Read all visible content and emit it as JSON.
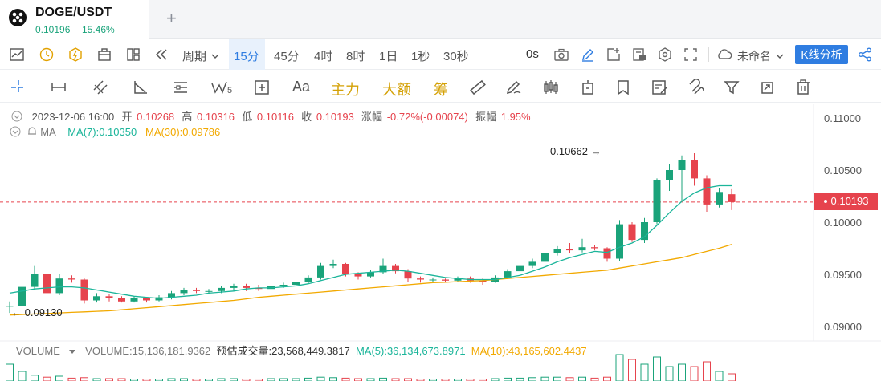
{
  "tab": {
    "symbol": "DOGE/USDT",
    "price": "0.10196",
    "change": "15.46%",
    "add": "+"
  },
  "toolbar": {
    "period_label": "周期",
    "timeframes": [
      "15分",
      "45分",
      "4时",
      "8时",
      "1日",
      "1秒",
      "30秒"
    ],
    "active_timeframe": "15分",
    "countdown": "0s",
    "layout_name": "未命名",
    "analysis_button": "K线分析"
  },
  "drawbar": {
    "font_tool": "Aa",
    "text_tools": [
      "主力",
      "大额",
      "筹"
    ],
    "wave_sub": "5"
  },
  "legend": {
    "datetime": "2023-12-06 16:00",
    "open_label": "开",
    "open": "0.10268",
    "high_label": "高",
    "high": "0.10316",
    "low_label": "低",
    "low": "0.10116",
    "close_label": "收",
    "close": "0.10193",
    "change_label": "涨幅",
    "change": "-0.72%(-0.00074)",
    "amp_label": "振幅",
    "amp": "1.95%"
  },
  "ma_legend": {
    "label": "MA",
    "ma7": "MA(7):0.10350",
    "ma30": "MA(30):0.09786"
  },
  "volume_legend": {
    "label": "VOLUME",
    "volume": "VOLUME:15,136,181.9362",
    "estimate": "预估成交量:23,568,449.3817",
    "ma5": "MA(5):36,134,673.8971",
    "ma10": "MA(10):43,165,602.4437"
  },
  "chart_data": {
    "type": "candlestick",
    "y_ticks": [
      "0.11000",
      "0.10500",
      "0.10000",
      "0.09500",
      "0.09000"
    ],
    "ylim": [
      0.0885,
      0.1115
    ],
    "last_price": "0.10193",
    "high_annotation": "0.10662",
    "low_annotation": "0.09130",
    "colors": {
      "up": "#1aa37a",
      "down": "#e6434d",
      "ma7": "#1bb59a",
      "ma30": "#f2a900"
    },
    "candles": [
      [
        0.0919,
        0.092,
        0.0924,
        0.0913
      ],
      [
        0.092,
        0.0938,
        0.0946,
        0.0918
      ],
      [
        0.0938,
        0.095,
        0.0958,
        0.0936
      ],
      [
        0.095,
        0.0932,
        0.0952,
        0.093
      ],
      [
        0.0932,
        0.0946,
        0.095,
        0.093
      ],
      [
        0.0946,
        0.0945,
        0.0949,
        0.0942
      ],
      [
        0.0945,
        0.0925,
        0.0946,
        0.0922
      ],
      [
        0.0925,
        0.0929,
        0.0932,
        0.0923
      ],
      [
        0.0929,
        0.0927,
        0.0931,
        0.0924
      ],
      [
        0.0927,
        0.0924,
        0.0929,
        0.0923
      ],
      [
        0.0924,
        0.0927,
        0.0929,
        0.0923
      ],
      [
        0.0927,
        0.0925,
        0.0928,
        0.0923
      ],
      [
        0.0925,
        0.0928,
        0.093,
        0.0924
      ],
      [
        0.0928,
        0.0932,
        0.0934,
        0.0926
      ],
      [
        0.0932,
        0.0935,
        0.0937,
        0.093
      ],
      [
        0.0935,
        0.0934,
        0.0937,
        0.0932
      ],
      [
        0.0934,
        0.0934,
        0.0936,
        0.0931
      ],
      [
        0.0934,
        0.0937,
        0.0939,
        0.0932
      ],
      [
        0.0937,
        0.0939,
        0.0941,
        0.0934
      ],
      [
        0.0939,
        0.0937,
        0.0941,
        0.0934
      ],
      [
        0.0937,
        0.0936,
        0.094,
        0.0934
      ],
      [
        0.0936,
        0.0939,
        0.0941,
        0.0934
      ],
      [
        0.0939,
        0.094,
        0.0942,
        0.0937
      ],
      [
        0.094,
        0.0943,
        0.0946,
        0.0938
      ],
      [
        0.0943,
        0.0947,
        0.0949,
        0.0941
      ],
      [
        0.0947,
        0.0958,
        0.0961,
        0.0945
      ],
      [
        0.0958,
        0.096,
        0.0964,
        0.0956
      ],
      [
        0.096,
        0.095,
        0.0961,
        0.0948
      ],
      [
        0.095,
        0.0948,
        0.0952,
        0.0945
      ],
      [
        0.0948,
        0.0952,
        0.0954,
        0.0947
      ],
      [
        0.0952,
        0.0958,
        0.0965,
        0.095
      ],
      [
        0.0958,
        0.0953,
        0.096,
        0.0951
      ],
      [
        0.0953,
        0.0946,
        0.0955,
        0.0943
      ],
      [
        0.0946,
        0.0945,
        0.0948,
        0.0942
      ],
      [
        0.0945,
        0.0945,
        0.0947,
        0.0942
      ],
      [
        0.0945,
        0.0944,
        0.0946,
        0.0942
      ],
      [
        0.0944,
        0.0946,
        0.0948,
        0.0943
      ],
      [
        0.0946,
        0.0944,
        0.0948,
        0.0942
      ],
      [
        0.0944,
        0.0943,
        0.0946,
        0.094
      ],
      [
        0.0943,
        0.0947,
        0.0949,
        0.0942
      ],
      [
        0.0947,
        0.0953,
        0.0955,
        0.0946
      ],
      [
        0.0953,
        0.0958,
        0.0961,
        0.0951
      ],
      [
        0.0958,
        0.0962,
        0.0965,
        0.0956
      ],
      [
        0.0962,
        0.097,
        0.0972,
        0.096
      ],
      [
        0.097,
        0.0974,
        0.0977,
        0.0968
      ],
      [
        0.0974,
        0.0973,
        0.098,
        0.097
      ],
      [
        0.0973,
        0.0976,
        0.0984,
        0.0971
      ],
      [
        0.0976,
        0.0975,
        0.0978,
        0.0973
      ],
      [
        0.0975,
        0.0965,
        0.0976,
        0.0962
      ],
      [
        0.0965,
        0.0998,
        0.1002,
        0.0963
      ],
      [
        0.0998,
        0.0983,
        0.1,
        0.0981
      ],
      [
        0.0983,
        0.1,
        0.1004,
        0.098
      ],
      [
        0.1,
        0.104,
        0.1042,
        0.0998
      ],
      [
        0.104,
        0.105,
        0.1056,
        0.103
      ],
      [
        0.105,
        0.106,
        0.1064,
        0.102
      ],
      [
        0.106,
        0.1042,
        0.10662,
        0.1035
      ],
      [
        0.1042,
        0.1017,
        0.1045,
        0.101
      ],
      [
        0.1017,
        0.1029,
        0.1033,
        0.1014
      ],
      [
        0.10268,
        0.10193,
        0.10316,
        0.10116
      ]
    ],
    "ma7": [
      0.0932,
      0.0934,
      0.0936,
      0.0937,
      0.0938,
      0.0938,
      0.0937,
      0.0935,
      0.0933,
      0.0931,
      0.0929,
      0.0928,
      0.0927,
      0.0928,
      0.0929,
      0.093,
      0.0932,
      0.0933,
      0.0934,
      0.0936,
      0.0937,
      0.0937,
      0.0938,
      0.0939,
      0.0941,
      0.0944,
      0.0947,
      0.095,
      0.0951,
      0.0952,
      0.0953,
      0.0954,
      0.0953,
      0.0951,
      0.0949,
      0.0947,
      0.0946,
      0.0945,
      0.0945,
      0.0945,
      0.0947,
      0.0949,
      0.0953,
      0.0957,
      0.0962,
      0.0966,
      0.0969,
      0.0972,
      0.0971,
      0.0976,
      0.098,
      0.0986,
      0.0997,
      0.1009,
      0.102,
      0.1028,
      0.1033,
      0.1035,
      0.1035
    ],
    "ma30": [
      0.0911,
      0.09115,
      0.0912,
      0.09125,
      0.0913,
      0.09135,
      0.0914,
      0.09145,
      0.0915,
      0.0916,
      0.0917,
      0.0918,
      0.0919,
      0.092,
      0.0921,
      0.0922,
      0.0923,
      0.0924,
      0.0925,
      0.09265,
      0.0928,
      0.0929,
      0.093,
      0.0931,
      0.0932,
      0.0933,
      0.0934,
      0.0935,
      0.0936,
      0.0937,
      0.0938,
      0.0939,
      0.094,
      0.0941,
      0.0942,
      0.09425,
      0.0943,
      0.09435,
      0.0944,
      0.0945,
      0.0946,
      0.0947,
      0.0948,
      0.0949,
      0.095,
      0.0951,
      0.0952,
      0.0953,
      0.0954,
      0.0956,
      0.0958,
      0.096,
      0.0962,
      0.0964,
      0.0966,
      0.0969,
      0.0972,
      0.0975,
      0.09786
    ],
    "volumes": [
      0.35,
      0.2,
      0.12,
      0.08,
      0.1,
      0.06,
      0.07,
      0.05,
      0.05,
      0.05,
      0.04,
      0.04,
      0.04,
      0.05,
      0.05,
      0.04,
      0.04,
      0.05,
      0.05,
      0.04,
      0.04,
      0.05,
      0.05,
      0.05,
      0.06,
      0.08,
      0.07,
      0.06,
      0.05,
      0.05,
      0.06,
      0.05,
      0.05,
      0.04,
      0.04,
      0.04,
      0.04,
      0.04,
      0.04,
      0.05,
      0.06,
      0.06,
      0.07,
      0.08,
      0.08,
      0.07,
      0.08,
      0.06,
      0.08,
      0.55,
      0.45,
      0.35,
      0.5,
      0.3,
      0.35,
      0.3,
      0.4,
      0.2,
      0.15
    ]
  }
}
